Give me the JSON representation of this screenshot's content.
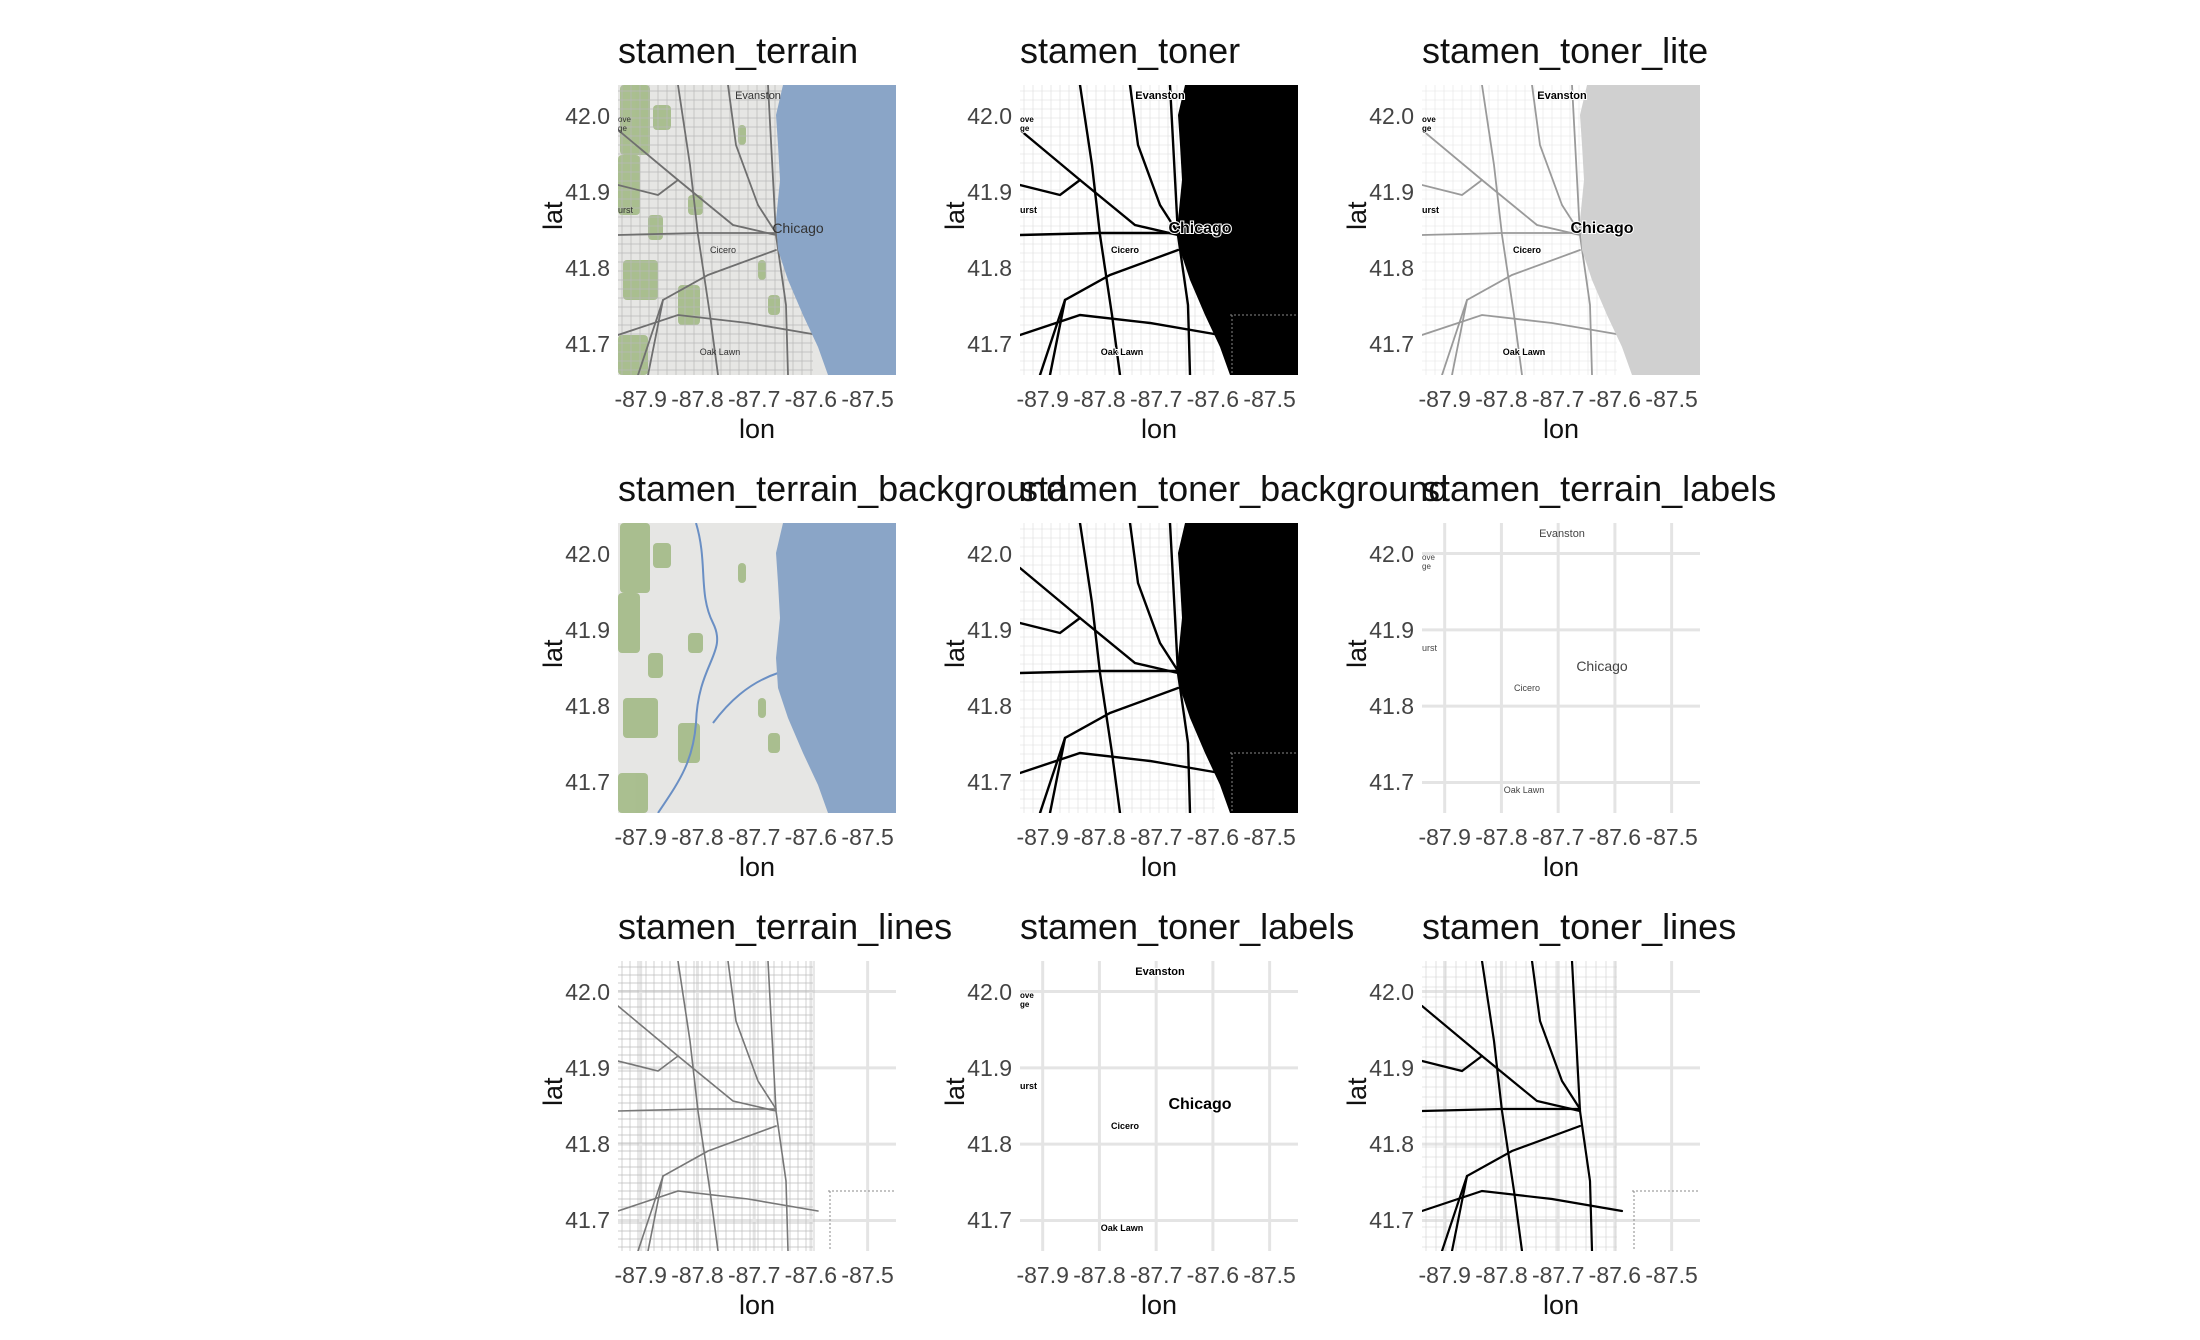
{
  "axes": {
    "xlabel": "lon",
    "ylabel": "lat",
    "x_ticks": [
      "-87.9",
      "-87.8",
      "-87.7",
      "-87.6",
      "-87.5"
    ],
    "y_ticks": [
      "42.0",
      "41.9",
      "41.8",
      "41.7"
    ]
  },
  "places": {
    "evanston": "Evanston",
    "chicago": "Chicago",
    "cicero": "Cicero",
    "oak_lawn": "Oak Lawn",
    "urst": "urst",
    "ove": "ove",
    "ge": "ge"
  },
  "colors": {
    "terrain_water": "#8aa5c7",
    "terrain_land": "#e6e6e4",
    "terrain_green": "#9bb57a",
    "toner_water": "#000000",
    "lite_water": "#d0d0d0",
    "grid": "#e4e4e4"
  },
  "panels": [
    {
      "title": "stamen_terrain",
      "style": "terrain"
    },
    {
      "title": "stamen_toner",
      "style": "toner"
    },
    {
      "title": "stamen_toner_lite",
      "style": "toner_lite"
    },
    {
      "title": "stamen_terrain_background",
      "style": "terrain_background"
    },
    {
      "title": "stamen_toner_background",
      "style": "toner_background"
    },
    {
      "title": "stamen_terrain_labels",
      "style": "terrain_labels"
    },
    {
      "title": "stamen_terrain_lines",
      "style": "terrain_lines"
    },
    {
      "title": "stamen_toner_labels",
      "style": "toner_labels"
    },
    {
      "title": "stamen_toner_lines",
      "style": "toner_lines"
    }
  ]
}
